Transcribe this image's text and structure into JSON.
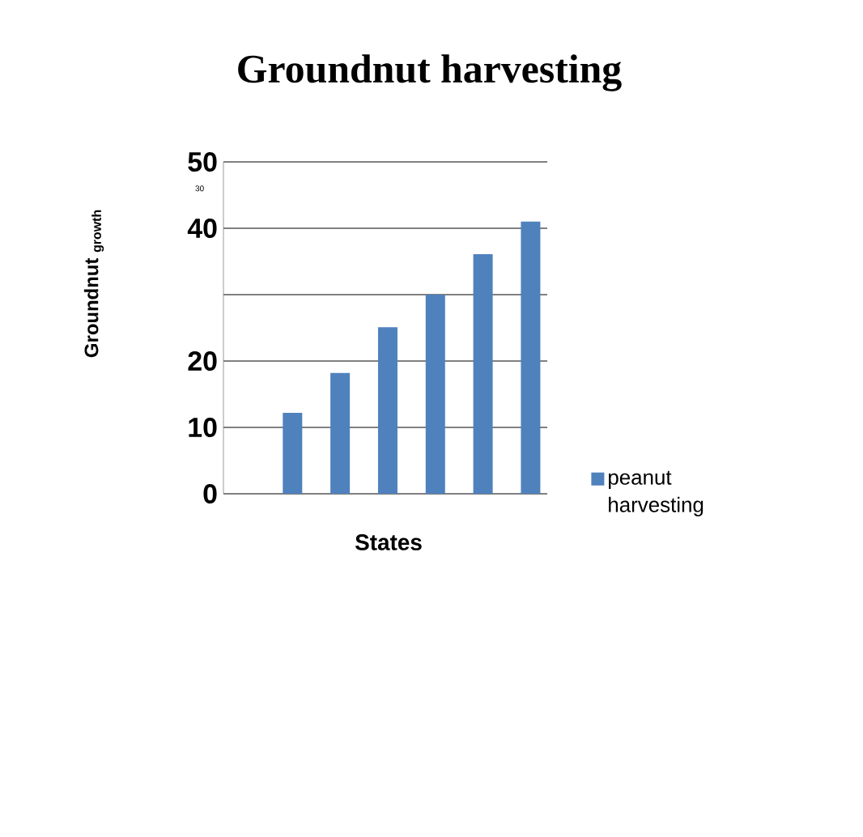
{
  "chart_data": {
    "type": "bar",
    "title": "Groundnut harvesting",
    "xlabel": "States",
    "ylabel": "Groundnut $_{growth}$",
    "categories": [
      null,
      null,
      null,
      null,
      null,
      null
    ],
    "series": [
      {
        "name": "peanut harvesting",
        "color": "#4f81bd",
        "values": [
          12.2,
          18.2,
          25.1,
          30,
          36.1,
          41
        ]
      }
    ],
    "ylim": [
      0,
      50
    ],
    "yticks": [
      0,
      10,
      20,
      {
        "value": 30,
        "label": null
      },
      40,
      50
    ],
    "annotations": [
      "30"
    ],
    "grid": "y",
    "legend": "right"
  }
}
